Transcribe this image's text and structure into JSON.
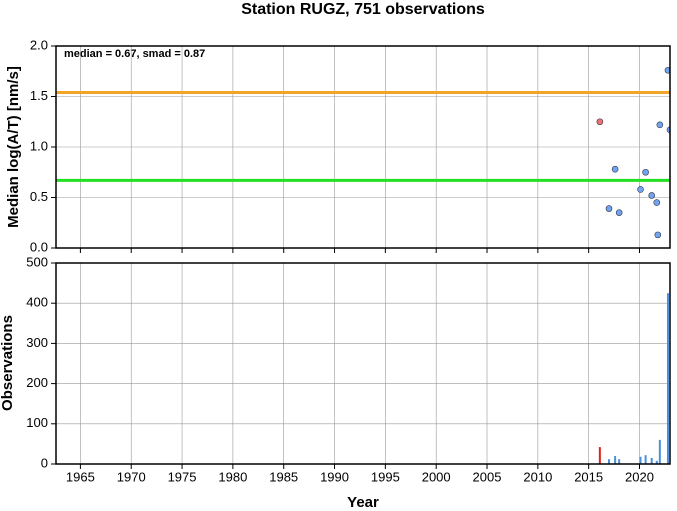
{
  "chart_data": [
    {
      "type": "scatter",
      "title": "Station RUGZ, 751 observations",
      "ylabel": "Median log(A/T) [nm/s]",
      "annotation": "median = 0.67, smad = 0.87",
      "xlim": [
        1962.6,
        2023.0
      ],
      "xticks": [
        1965,
        1970,
        1975,
        1980,
        1985,
        1990,
        1995,
        2000,
        2005,
        2010,
        2015,
        2020
      ],
      "ylim": [
        0,
        2
      ],
      "yticks": [
        {
          "value": 0,
          "label": "0.0"
        },
        {
          "value": 0.5,
          "label": "0.5"
        },
        {
          "value": 1,
          "label": "1.0"
        },
        {
          "value": 1.5,
          "label": "1.5"
        },
        {
          "value": 2,
          "label": "2.0"
        }
      ],
      "grid": true,
      "hlines": [
        {
          "value": 1.54,
          "color": "#f0a428"
        },
        {
          "value": 0.67,
          "color": "#22e022"
        }
      ],
      "series": [
        {
          "color": "#f07070",
          "x": [
            2016.1
          ],
          "values": [
            1.25
          ]
        },
        {
          "color": "#70a4f0",
          "x": [
            2017.0,
            2017.6,
            2018.0,
            2020.1,
            2020.6,
            2021.2,
            2021.7,
            2021.8,
            2022.0,
            2022.8,
            2023.0
          ],
          "values": [
            0.39,
            0.78,
            0.35,
            0.58,
            0.75,
            0.52,
            0.45,
            0.13,
            1.22,
            1.76,
            1.17
          ]
        }
      ]
    },
    {
      "type": "bar",
      "xlabel": "Year",
      "ylabel": "Observations",
      "xlim": [
        1962.6,
        2023.0
      ],
      "xticks": [
        1965,
        1970,
        1975,
        1980,
        1985,
        1990,
        1995,
        2000,
        2005,
        2010,
        2015,
        2020
      ],
      "ylim": [
        0,
        500
      ],
      "yticks": [
        0,
        100,
        200,
        300,
        400,
        500
      ],
      "grid": true,
      "series": [
        {
          "color": "#e02020",
          "x": [
            2016.1
          ],
          "values": [
            42
          ]
        },
        {
          "color": "#4a90e0",
          "x": [
            2017.0,
            2017.6,
            2018.0,
            2020.1,
            2020.6,
            2021.2,
            2021.7,
            2022.0,
            2022.8
          ],
          "values": [
            12,
            20,
            12,
            18,
            22,
            15,
            8,
            60,
            425
          ]
        }
      ]
    }
  ]
}
